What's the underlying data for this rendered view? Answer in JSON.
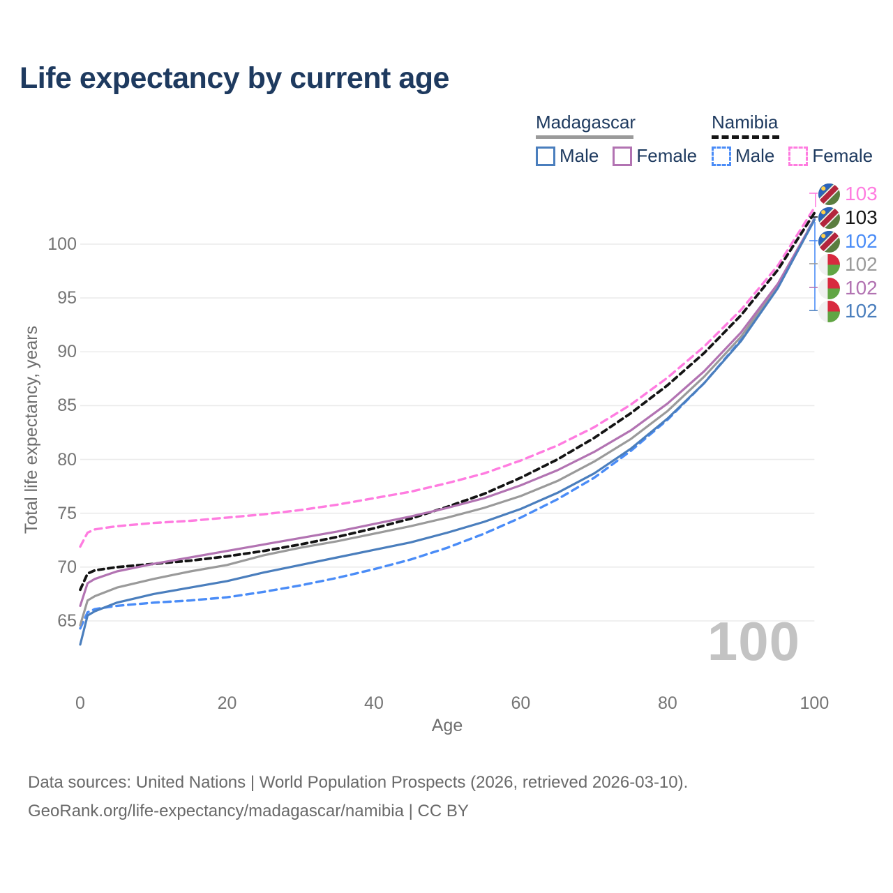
{
  "title": "Life expectancy by current age",
  "legend": {
    "groups": [
      {
        "name": "Madagascar",
        "line_style": "solid",
        "underline_color": "#9a9a9a",
        "items": [
          {
            "label": "Male",
            "color": "#4a7ebd"
          },
          {
            "label": "Female",
            "color": "#b273b2"
          }
        ]
      },
      {
        "name": "Namibia",
        "line_style": "dashed",
        "underline_color": "#141414",
        "items": [
          {
            "label": "Male",
            "color": "#4a8cf7"
          },
          {
            "label": "Female",
            "color": "#ff7ce0"
          }
        ]
      }
    ]
  },
  "axes": {
    "x_label": "Age",
    "y_label": "Total life expectancy, years",
    "x_ticks": [
      0,
      20,
      40,
      60,
      80,
      100
    ],
    "y_ticks": [
      65,
      70,
      75,
      80,
      85,
      90,
      95,
      100
    ]
  },
  "watermark_age": "100",
  "chart_data": {
    "type": "line",
    "title": "Life expectancy by current age",
    "xlabel": "Age",
    "ylabel": "Total life expectancy, years",
    "xlim": [
      0,
      100
    ],
    "ylim": [
      61,
      104
    ],
    "grid": "horizontal",
    "legend_position": "top-right",
    "x": [
      0,
      1,
      2,
      5,
      10,
      15,
      20,
      25,
      30,
      35,
      40,
      45,
      50,
      55,
      60,
      65,
      70,
      75,
      80,
      85,
      90,
      95,
      100
    ],
    "series": [
      {
        "name": "Namibia Female",
        "country": "Namibia",
        "sex": "Female",
        "style": "dashed",
        "color": "#ff7ce0",
        "width": 3.4,
        "values": [
          71.9,
          73.2,
          73.5,
          73.8,
          74.1,
          74.3,
          74.6,
          74.9,
          75.3,
          75.8,
          76.4,
          77.0,
          77.8,
          78.7,
          79.9,
          81.3,
          83.0,
          85.1,
          87.6,
          90.5,
          93.9,
          98.0,
          103.4
        ]
      },
      {
        "name": "Namibia Total",
        "country": "Namibia",
        "sex": "Both",
        "style": "dashed",
        "color": "#141414",
        "width": 3.8,
        "values": [
          67.9,
          69.4,
          69.7,
          70.0,
          70.3,
          70.6,
          71.0,
          71.5,
          72.1,
          72.8,
          73.6,
          74.5,
          75.6,
          76.8,
          78.3,
          80.0,
          82.0,
          84.3,
          86.9,
          89.9,
          93.4,
          97.6,
          102.9
        ]
      },
      {
        "name": "Namibia Male",
        "country": "Namibia",
        "sex": "Male",
        "style": "dashed",
        "color": "#4a8cf7",
        "width": 3.4,
        "values": [
          64.3,
          65.8,
          66.1,
          66.4,
          66.7,
          66.9,
          67.2,
          67.7,
          68.3,
          69.0,
          69.8,
          70.7,
          71.8,
          73.1,
          74.6,
          76.3,
          78.3,
          80.8,
          83.7,
          87.1,
          91.1,
          96.0,
          102.4
        ]
      },
      {
        "name": "Madagascar Total",
        "country": "Madagascar",
        "sex": "Both",
        "style": "solid",
        "color": "#9a9a9a",
        "width": 3.2,
        "values": [
          64.6,
          66.9,
          67.3,
          68.1,
          68.9,
          69.6,
          70.2,
          71.1,
          71.8,
          72.4,
          73.1,
          73.8,
          74.6,
          75.5,
          76.6,
          78.0,
          79.8,
          81.9,
          84.5,
          87.7,
          91.4,
          96.1,
          102.35
        ]
      },
      {
        "name": "Madagascar Female",
        "country": "Madagascar",
        "sex": "Female",
        "style": "solid",
        "color": "#b273b2",
        "width": 3.2,
        "values": [
          66.4,
          68.5,
          68.9,
          69.6,
          70.3,
          70.9,
          71.5,
          72.1,
          72.7,
          73.3,
          74.0,
          74.7,
          75.5,
          76.4,
          77.6,
          79.0,
          80.7,
          82.7,
          85.2,
          88.2,
          91.8,
          96.3,
          102.3
        ]
      },
      {
        "name": "Madagascar Male",
        "country": "Madagascar",
        "sex": "Male",
        "style": "solid",
        "color": "#4a7ebd",
        "width": 3.2,
        "values": [
          62.8,
          65.5,
          65.9,
          66.7,
          67.5,
          68.1,
          68.7,
          69.5,
          70.2,
          70.9,
          71.6,
          72.3,
          73.2,
          74.2,
          75.4,
          76.9,
          78.7,
          81.0,
          83.8,
          87.1,
          91.0,
          95.9,
          102.25
        ]
      }
    ]
  },
  "end_labels": [
    {
      "text": "103",
      "color": "#ff7ce0",
      "flag": "namibia"
    },
    {
      "text": "103",
      "color": "#141414",
      "flag": "namibia"
    },
    {
      "text": "102",
      "color": "#4a8cf7",
      "flag": "namibia"
    },
    {
      "text": "102",
      "color": "#9a9a9a",
      "flag": "madagascar"
    },
    {
      "text": "102",
      "color": "#b273b2",
      "flag": "madagascar"
    },
    {
      "text": "102",
      "color": "#4a7ebd",
      "flag": "madagascar"
    }
  ],
  "footer": {
    "line1": "Data sources: United Nations | World Population Prospects (2026, retrieved 2026-03-10).",
    "line2": "GeoRank.org/life-expectancy/madagascar/namibia | CC BY"
  }
}
